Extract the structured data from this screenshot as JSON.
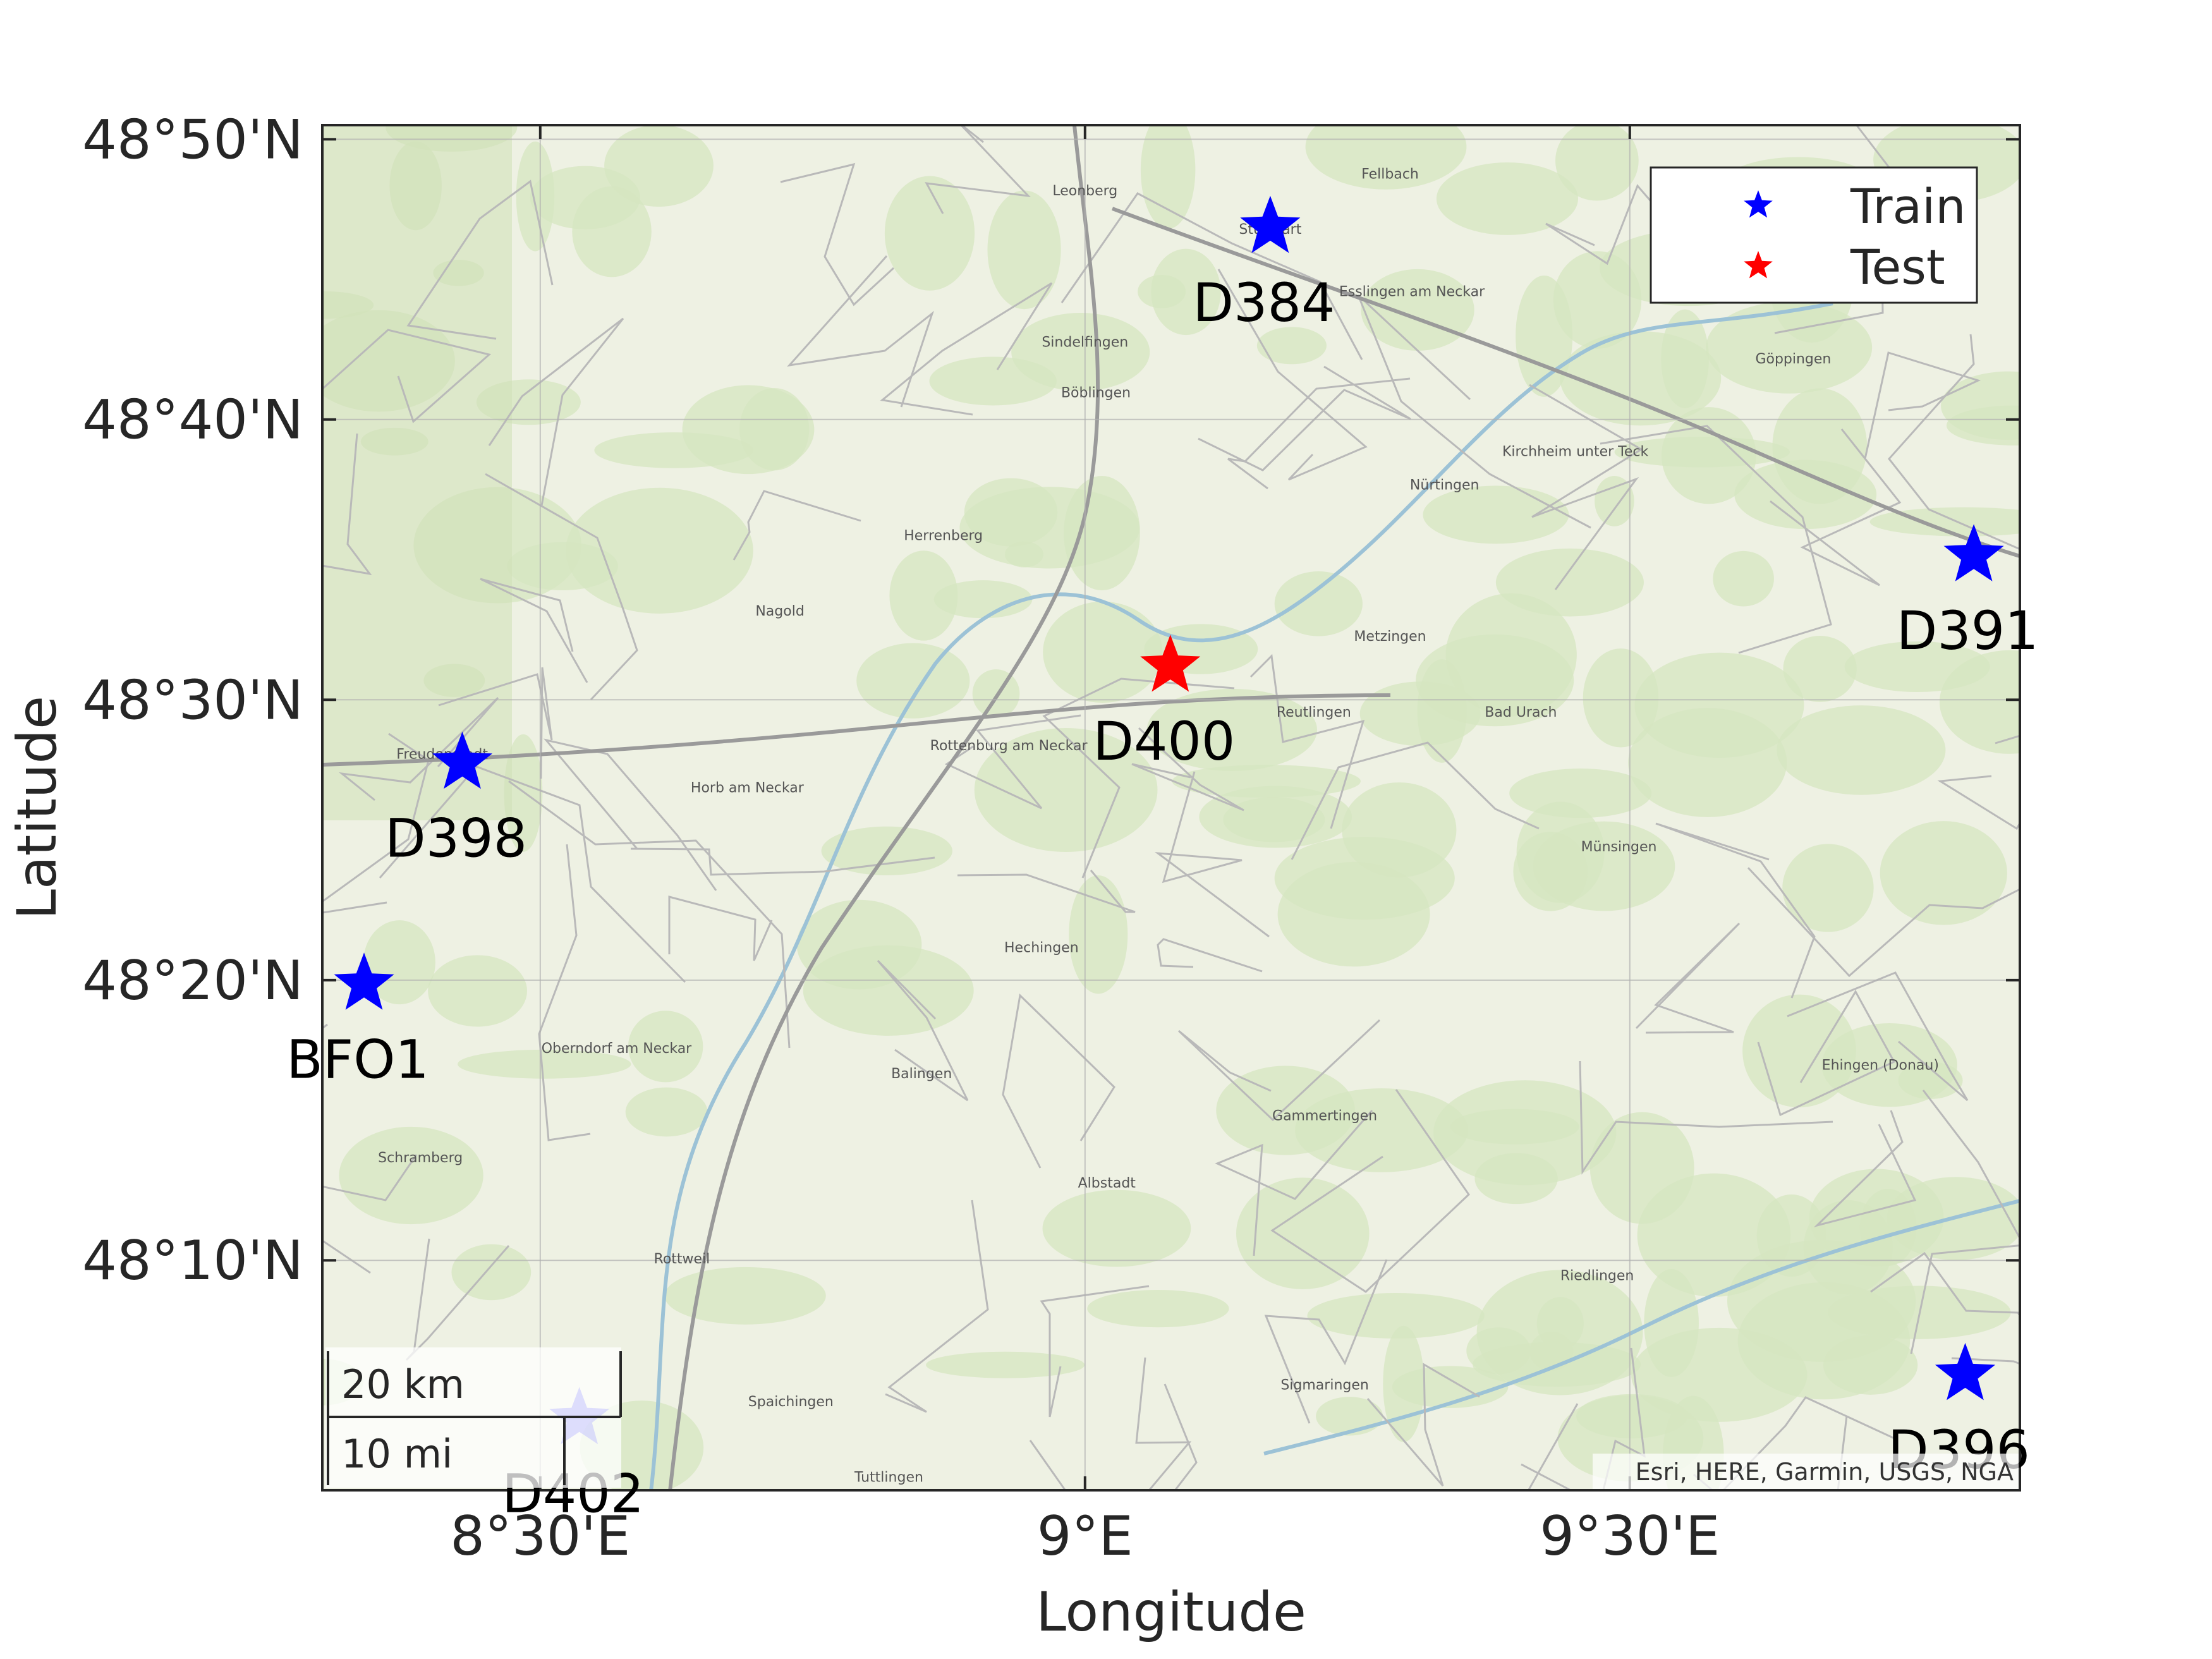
{
  "figure": {
    "xlabel": "Longitude",
    "ylabel": "Latitude",
    "attribution": "Esri, HERE, Garmin, USGS, NGA"
  },
  "axes": {
    "lon_range": [
      8.3,
      9.858
    ],
    "lat_range": [
      48.03,
      48.8417
    ],
    "x_ticks": [
      {
        "lon": 8.5,
        "label": "8°30'E"
      },
      {
        "lon": 9.0,
        "label": "9°E"
      },
      {
        "lon": 9.5,
        "label": "9°30'E"
      }
    ],
    "y_ticks": [
      {
        "lat": 48.8333,
        "label": "48°50'N"
      },
      {
        "lat": 48.6667,
        "label": "48°40'N"
      },
      {
        "lat": 48.5,
        "label": "48°30'N"
      },
      {
        "lat": 48.3333,
        "label": "48°20'N"
      },
      {
        "lat": 48.1667,
        "label": "48°10'N"
      }
    ],
    "grid": true
  },
  "legend": {
    "position": "top-right",
    "entries": [
      {
        "label": "Train",
        "color": "#0000ff"
      },
      {
        "label": "Test",
        "color": "#ff0000"
      }
    ]
  },
  "scalebar": {
    "km_label": "20 km",
    "mi_label": "10 mi"
  },
  "stations": [
    {
      "name": "D384",
      "lon": 9.17,
      "lat": 48.7809,
      "set": "Train",
      "color": "#0000ff",
      "faded": false
    },
    {
      "name": "D391",
      "lon": 9.8157,
      "lat": 48.5857,
      "set": "Train",
      "color": "#0000ff",
      "faded": false
    },
    {
      "name": "D400",
      "lon": 9.0783,
      "lat": 48.52,
      "set": "Test",
      "color": "#ff0000",
      "faded": false
    },
    {
      "name": "D398",
      "lon": 8.4285,
      "lat": 48.4623,
      "set": "Train",
      "color": "#0000ff",
      "faded": false
    },
    {
      "name": "BFO1",
      "lon": 8.3383,
      "lat": 48.3309,
      "set": "Train",
      "color": "#0000ff",
      "faded": false
    },
    {
      "name": "D396",
      "lon": 9.8078,
      "lat": 48.0988,
      "set": "Train",
      "color": "#0000ff",
      "faded": false
    },
    {
      "name": "D402",
      "lon": 8.5359,
      "lat": 48.0726,
      "set": "Train",
      "color": "#0000ff",
      "faded": true
    }
  ],
  "map_towns": [
    {
      "name": "Stuttgart",
      "lon": 9.17,
      "lat": 48.777
    },
    {
      "name": "Leonberg",
      "lon": 9.0,
      "lat": 48.8
    },
    {
      "name": "Fellbach",
      "lon": 9.28,
      "lat": 48.81
    },
    {
      "name": "Esslingen am Neckar",
      "lon": 9.3,
      "lat": 48.74
    },
    {
      "name": "Böblingen",
      "lon": 9.01,
      "lat": 48.68
    },
    {
      "name": "Sindelfingen",
      "lon": 9.0,
      "lat": 48.71
    },
    {
      "name": "Herrenberg",
      "lon": 8.87,
      "lat": 48.595
    },
    {
      "name": "Nürtingen",
      "lon": 9.33,
      "lat": 48.625
    },
    {
      "name": "Kirchheim unter Teck",
      "lon": 9.45,
      "lat": 48.645
    },
    {
      "name": "Göppingen",
      "lon": 9.65,
      "lat": 48.7
    },
    {
      "name": "Reutlingen",
      "lon": 9.21,
      "lat": 48.49
    },
    {
      "name": "Rottenburg am Neckar",
      "lon": 8.93,
      "lat": 48.47
    },
    {
      "name": "Balingen",
      "lon": 8.85,
      "lat": 48.275
    },
    {
      "name": "Albstadt",
      "lon": 9.02,
      "lat": 48.21
    },
    {
      "name": "Nagold",
      "lon": 8.72,
      "lat": 48.55
    },
    {
      "name": "Horb am Neckar",
      "lon": 8.69,
      "lat": 48.445
    },
    {
      "name": "Oberndorf am Neckar",
      "lon": 8.57,
      "lat": 48.29
    },
    {
      "name": "Schramberg",
      "lon": 8.39,
      "lat": 48.225
    },
    {
      "name": "Rottweil",
      "lon": 8.63,
      "lat": 48.165
    },
    {
      "name": "Bad Urach",
      "lon": 9.4,
      "lat": 48.49
    },
    {
      "name": "Münsingen",
      "lon": 9.49,
      "lat": 48.41
    },
    {
      "name": "Ehingen (Donau)",
      "lon": 9.73,
      "lat": 48.28
    },
    {
      "name": "Riedlingen",
      "lon": 9.47,
      "lat": 48.155
    },
    {
      "name": "Sigmaringen",
      "lon": 9.22,
      "lat": 48.09
    },
    {
      "name": "Freudenstadt",
      "lon": 8.41,
      "lat": 48.465
    },
    {
      "name": "Spaichingen",
      "lon": 8.73,
      "lat": 48.08
    },
    {
      "name": "Tuttlingen",
      "lon": 8.82,
      "lat": 48.035
    },
    {
      "name": "Hechingen",
      "lon": 8.96,
      "lat": 48.35
    },
    {
      "name": "Metzingen",
      "lon": 9.28,
      "lat": 48.535
    },
    {
      "name": "Gammertingen",
      "lon": 9.22,
      "lat": 48.25
    }
  ]
}
